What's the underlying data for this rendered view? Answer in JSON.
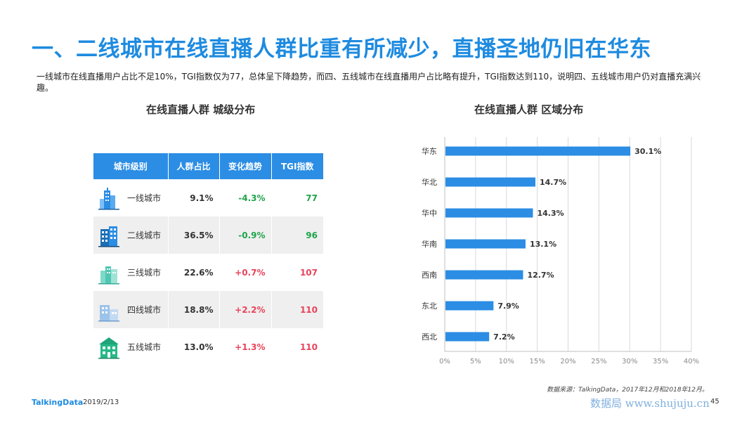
{
  "page": {
    "title": "一、二线城市在线直播人群比重有所减少，直播圣地仍旧在华东",
    "description": "一线城市在线直播用户占比不足10%，TGI指数仅为77，总体呈下降趋势，而四、五线城市在线直播用户占比略有提升，TGI指数达到110，说明四、五线城市用户仍对直播充满兴趣。",
    "left_section_title": "在线直播人群  城级分布",
    "right_section_title": "在线直播人群  区域分布",
    "source": "数据来源：TalkingData，2017年12月和2018年12月。",
    "brand": "TalkingData",
    "date": "2019/2/13",
    "watermark": "数据局 www.shujuju.cn",
    "page_number": "45"
  },
  "table": {
    "headers": [
      "城市级别",
      "人群占比",
      "变化趋势",
      "TGI指数"
    ],
    "rows": [
      {
        "level": "一线城市",
        "icon": "skyscraper-icon",
        "share": "9.1%",
        "trend": "-4.3%",
        "tgi": "77"
      },
      {
        "level": "二线城市",
        "icon": "office-building-icon",
        "share": "36.5%",
        "trend": "-0.9%",
        "tgi": "96"
      },
      {
        "level": "三线城市",
        "icon": "city-skyline-icon",
        "share": "22.6%",
        "trend": "+0.7%",
        "tgi": "107"
      },
      {
        "level": "四线城市",
        "icon": "town-buildings-icon",
        "share": "18.8%",
        "trend": "+2.2%",
        "tgi": "110"
      },
      {
        "level": "五线城市",
        "icon": "house-icon",
        "share": "13.0%",
        "trend": "+1.3%",
        "tgi": "110"
      }
    ],
    "colors": {
      "header": "#2b8de4",
      "negative": "#1fa34b",
      "positive": "#e8435b"
    }
  },
  "chart_data": {
    "type": "bar",
    "orientation": "horizontal",
    "categories": [
      "华东",
      "华北",
      "华中",
      "华南",
      "西南",
      "东北",
      "西北"
    ],
    "values": [
      30.1,
      14.7,
      14.3,
      13.1,
      12.7,
      7.9,
      7.2
    ],
    "value_labels": [
      "30.1%",
      "14.7%",
      "14.3%",
      "13.1%",
      "12.7%",
      "7.9%",
      "7.2%"
    ],
    "xlim": [
      0,
      40
    ],
    "x_ticks": [
      "0%",
      "5%",
      "10%",
      "15%",
      "20%",
      "25%",
      "30%",
      "35%",
      "40%"
    ],
    "grid": true,
    "bar_color": "#2b8de4"
  }
}
